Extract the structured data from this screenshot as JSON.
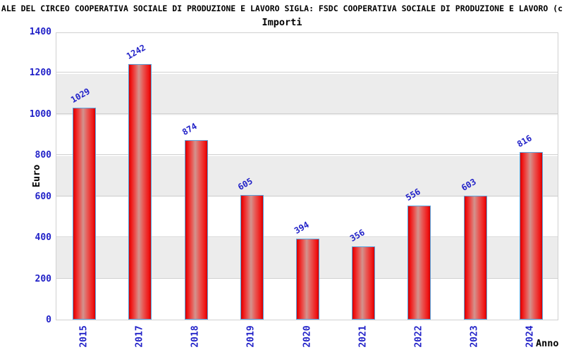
{
  "header": {
    "title": "ALE DEL CIRCEO COOPERATIVA SOCIALE DI PRODUZIONE E LAVORO SIGLA: FSDC COOPERATIVA SOCIALE DI PRODUZIONE E LAVORO (c",
    "subtitle": "Importi"
  },
  "chart_data": {
    "type": "bar",
    "title": "Importi",
    "categories": [
      "2015",
      "2017",
      "2018",
      "2019",
      "2020",
      "2021",
      "2022",
      "2023",
      "2024"
    ],
    "values": [
      1029,
      1242,
      874,
      605,
      394,
      356,
      556,
      603,
      816
    ],
    "xlabel": "Anno",
    "ylabel": "Euro",
    "ylim": [
      0,
      1400
    ],
    "yticks": [
      0,
      200,
      400,
      600,
      800,
      1000,
      1200,
      1400
    ],
    "grid": true,
    "legend_position": "none",
    "band_fill_alternating": true,
    "colors": {
      "bar_fill": "#ee1111",
      "bar_highlight": "#d2938e",
      "bar_border": "#5ba3dc",
      "value_label": "#2222c8",
      "tick_label": "#2222c8",
      "axis_title": "#000000",
      "band_gray": "#ececec",
      "grid_line": "#d0d0d0"
    }
  }
}
